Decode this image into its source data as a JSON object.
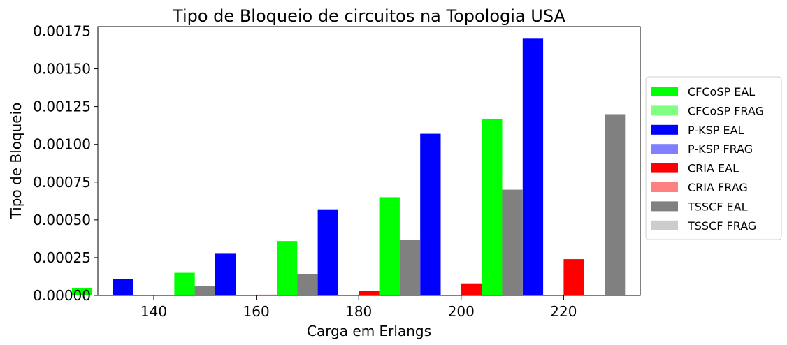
{
  "chart_data": {
    "type": "bar",
    "title": "Tipo de Bloqueio de circuitos na Topologia USA",
    "xlabel": "Carga em Erlangs",
    "ylabel": "Tipo de Bloqueio",
    "categories": [
      "140",
      "160",
      "180",
      "200",
      "220"
    ],
    "ylim": [
      0,
      0.00178
    ],
    "yticks": [
      "0.00000",
      "0.00025",
      "0.00050",
      "0.00075",
      "0.00100",
      "0.00125",
      "0.00150",
      "0.00175"
    ],
    "grid": false,
    "legend_position": "right",
    "series": [
      {
        "name": "CFCoSP EAL",
        "color": "#00ff00",
        "values": [
          5e-05,
          0.00015,
          0.00036,
          0.00065,
          0.00117
        ]
      },
      {
        "name": "CFCoSP FRAG",
        "color": "#80ff80",
        "values": [
          0,
          0,
          0,
          0,
          0
        ]
      },
      {
        "name": "P-KSP EAL",
        "color": "#0000ff",
        "values": [
          0.00011,
          0.00028,
          0.00057,
          0.00107,
          0.0017
        ]
      },
      {
        "name": "P-KSP FRAG",
        "color": "#8080ff",
        "values": [
          0,
          0,
          0,
          0,
          0
        ]
      },
      {
        "name": "CRIA EAL",
        "color": "#ff0000",
        "values": [
          0,
          5e-06,
          3e-05,
          8e-05,
          0.00024
        ]
      },
      {
        "name": "CRIA FRAG",
        "color": "#ff8080",
        "values": [
          0,
          0,
          0,
          0,
          0
        ]
      },
      {
        "name": "TSSCF EAL",
        "color": "#808080",
        "values": [
          6e-05,
          0.00014,
          0.00037,
          0.0007,
          0.0012
        ]
      },
      {
        "name": "TSSCF FRAG",
        "color": "#cccccc",
        "values": [
          0,
          0,
          0,
          0,
          0
        ]
      }
    ]
  }
}
